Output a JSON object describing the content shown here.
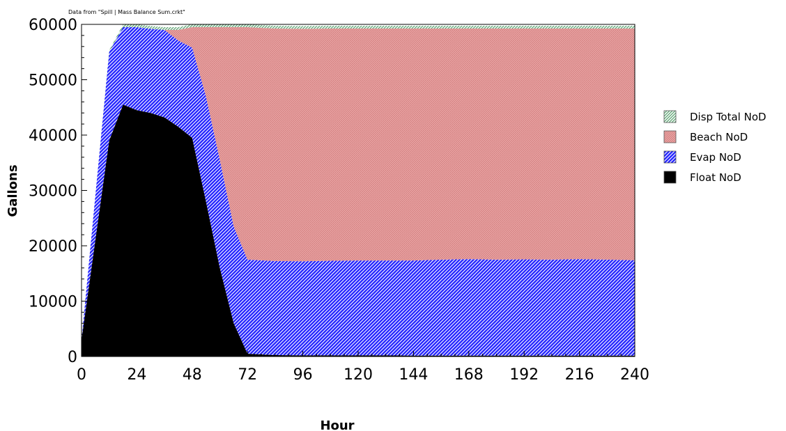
{
  "chart_data": {
    "type": "area",
    "stacked": true,
    "note": "Data from \"Spill | Mass Balance Sum.crkt\"",
    "xlabel": "Hour",
    "ylabel": "Gallons",
    "xlim": [
      0,
      240
    ],
    "ylim": [
      0,
      60000
    ],
    "xticks": [
      0,
      24,
      48,
      72,
      96,
      120,
      144,
      168,
      192,
      216,
      240
    ],
    "yticks": [
      0,
      10000,
      20000,
      30000,
      40000,
      50000,
      60000
    ],
    "x": [
      0,
      6,
      12,
      18,
      24,
      30,
      36,
      42,
      48,
      54,
      60,
      66,
      72,
      84,
      96,
      108,
      120,
      132,
      144,
      156,
      168,
      180,
      192,
      204,
      216,
      228,
      240
    ],
    "series": [
      {
        "name": "Float NoD",
        "color": "#000000",
        "values": [
          3000,
          21000,
          39000,
          45500,
          44500,
          44000,
          43200,
          41500,
          39500,
          28000,
          16000,
          6000,
          500,
          250,
          200,
          200,
          200,
          200,
          150,
          150,
          150,
          150,
          150,
          150,
          150,
          150,
          150
        ]
      },
      {
        "name": "Evap NoD",
        "color": "#1a1aff",
        "values": [
          0,
          8000,
          16000,
          14000,
          15000,
          15200,
          15800,
          15600,
          16300,
          19000,
          19500,
          17500,
          17000,
          17000,
          17000,
          17100,
          17150,
          17150,
          17200,
          17350,
          17450,
          17350,
          17400,
          17350,
          17450,
          17350,
          17250
        ]
      },
      {
        "name": "Beach NoD",
        "color": "#e8a0a0",
        "values": [
          0,
          0,
          0,
          0,
          0,
          0,
          0,
          1900,
          3700,
          12500,
          24000,
          36000,
          42000,
          42000,
          42000,
          41950,
          41900,
          41900,
          41900,
          41750,
          41650,
          41750,
          41700,
          41750,
          41650,
          41750,
          41850
        ]
      },
      {
        "name": "Disp Total NoD",
        "color": "#a8e0b8",
        "values": [
          0,
          0,
          300,
          500,
          500,
          500,
          500,
          500,
          500,
          500,
          500,
          500,
          500,
          500,
          500,
          500,
          500,
          500,
          500,
          500,
          500,
          500,
          500,
          500,
          500,
          500,
          500
        ]
      }
    ],
    "legend": {
      "position": "right"
    }
  }
}
